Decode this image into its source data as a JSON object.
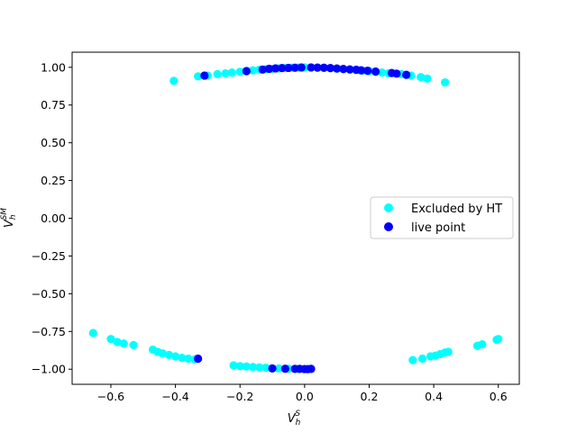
{
  "chart_data": {
    "type": "scatter",
    "title": "",
    "xlabel": {
      "base": "V",
      "sub": "h",
      "sup": "S"
    },
    "ylabel": {
      "base": "V",
      "sub": "h",
      "sup": "SM"
    },
    "xlim": [
      -0.72,
      0.665
    ],
    "ylim": [
      -1.1,
      1.1
    ],
    "xticks": [
      -0.6,
      -0.4,
      -0.2,
      0.0,
      0.2,
      0.4,
      0.6
    ],
    "xtick_labels": [
      "−0.6",
      "−0.4",
      "−0.2",
      "0.0",
      "0.2",
      "0.4",
      "0.6"
    ],
    "yticks": [
      -1.0,
      -0.75,
      -0.5,
      -0.25,
      0.0,
      0.25,
      0.5,
      0.75,
      1.0
    ],
    "ytick_labels": [
      "−1.00",
      "−0.75",
      "−0.50",
      "−0.25",
      "0.00",
      "0.25",
      "0.50",
      "0.75",
      "1.00"
    ],
    "legend_position": "center-right",
    "series": [
      {
        "name": "Excluded by HT",
        "color": "#00ffff",
        "points": [
          [
            -0.405,
            0.91
          ],
          [
            -0.33,
            0.94
          ],
          [
            -0.3,
            0.945
          ],
          [
            -0.27,
            0.955
          ],
          [
            -0.245,
            0.96
          ],
          [
            -0.225,
            0.965
          ],
          [
            -0.2,
            0.97
          ],
          [
            -0.18,
            0.975
          ],
          [
            -0.16,
            0.98
          ],
          [
            -0.14,
            0.985
          ],
          [
            -0.12,
            0.988
          ],
          [
            -0.1,
            0.99
          ],
          [
            -0.08,
            0.993
          ],
          [
            -0.06,
            0.995
          ],
          [
            -0.04,
            0.997
          ],
          [
            -0.02,
            0.998
          ],
          [
            0.0,
            0.999
          ],
          [
            0.02,
            0.999
          ],
          [
            0.04,
            0.998
          ],
          [
            0.06,
            0.996
          ],
          [
            0.08,
            0.994
          ],
          [
            0.1,
            0.991
          ],
          [
            0.12,
            0.988
          ],
          [
            0.14,
            0.985
          ],
          [
            0.16,
            0.982
          ],
          [
            0.18,
            0.978
          ],
          [
            0.2,
            0.975
          ],
          [
            0.22,
            0.97
          ],
          [
            0.24,
            0.965
          ],
          [
            0.26,
            0.96
          ],
          [
            0.3,
            0.955
          ],
          [
            0.33,
            0.945
          ],
          [
            0.36,
            0.935
          ],
          [
            0.38,
            0.925
          ],
          [
            0.435,
            0.9
          ],
          [
            -0.655,
            -0.76
          ],
          [
            -0.6,
            -0.8
          ],
          [
            -0.58,
            -0.82
          ],
          [
            -0.56,
            -0.83
          ],
          [
            -0.53,
            -0.84
          ],
          [
            -0.47,
            -0.87
          ],
          [
            -0.455,
            -0.885
          ],
          [
            -0.44,
            -0.895
          ],
          [
            -0.42,
            -0.905
          ],
          [
            -0.4,
            -0.915
          ],
          [
            -0.38,
            -0.925
          ],
          [
            -0.36,
            -0.93
          ],
          [
            -0.34,
            -0.935
          ],
          [
            -0.22,
            -0.975
          ],
          [
            -0.2,
            -0.98
          ],
          [
            -0.18,
            -0.982
          ],
          [
            -0.16,
            -0.985
          ],
          [
            -0.14,
            -0.988
          ],
          [
            -0.12,
            -0.99
          ],
          [
            -0.08,
            -0.995
          ],
          [
            -0.05,
            -0.997
          ],
          [
            -0.02,
            -0.998
          ],
          [
            0.0,
            -0.999
          ],
          [
            0.02,
            -0.998
          ],
          [
            0.335,
            -0.94
          ],
          [
            0.365,
            -0.93
          ],
          [
            0.39,
            -0.915
          ],
          [
            0.405,
            -0.91
          ],
          [
            0.42,
            -0.9
          ],
          [
            0.435,
            -0.89
          ],
          [
            0.445,
            -0.885
          ],
          [
            0.535,
            -0.845
          ],
          [
            0.55,
            -0.835
          ],
          [
            0.595,
            -0.805
          ],
          [
            0.6,
            -0.8
          ]
        ]
      },
      {
        "name": "live point",
        "color": "#0000ff",
        "points": [
          [
            -0.31,
            0.945
          ],
          [
            -0.18,
            0.975
          ],
          [
            -0.13,
            0.985
          ],
          [
            -0.11,
            0.99
          ],
          [
            -0.09,
            0.993
          ],
          [
            -0.07,
            0.995
          ],
          [
            -0.05,
            0.996
          ],
          [
            -0.03,
            0.997
          ],
          [
            -0.01,
            0.999
          ],
          [
            0.02,
            0.999
          ],
          [
            0.04,
            0.998
          ],
          [
            0.06,
            0.997
          ],
          [
            0.08,
            0.995
          ],
          [
            0.1,
            0.992
          ],
          [
            0.12,
            0.989
          ],
          [
            0.14,
            0.986
          ],
          [
            0.16,
            0.984
          ],
          [
            0.175,
            0.98
          ],
          [
            0.195,
            0.977
          ],
          [
            0.22,
            0.972
          ],
          [
            0.27,
            0.962
          ],
          [
            0.285,
            0.958
          ],
          [
            0.315,
            0.95
          ],
          [
            -0.33,
            -0.93
          ],
          [
            -0.1,
            -0.995
          ],
          [
            -0.06,
            -0.997
          ],
          [
            -0.03,
            -0.998
          ],
          [
            -0.015,
            -0.998
          ],
          [
            0.0,
            -0.999
          ],
          [
            0.01,
            -0.999
          ],
          [
            0.02,
            -0.998
          ]
        ]
      }
    ]
  }
}
